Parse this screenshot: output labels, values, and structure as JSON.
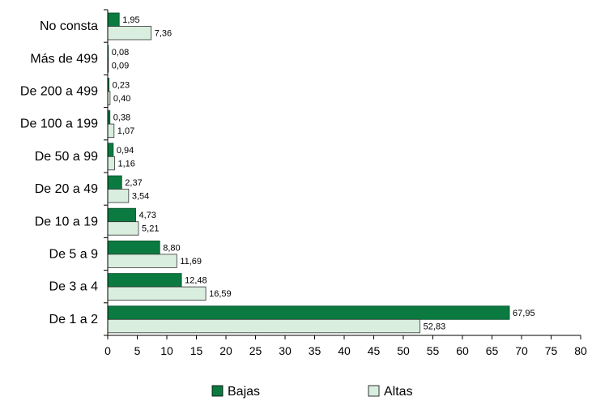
{
  "chart_data": {
    "type": "bar",
    "orientation": "horizontal",
    "categories": [
      "No consta",
      "Más de 499",
      "De 200 a 499",
      "De 100 a 199",
      "De 50 a 99",
      "De 20 a 49",
      "De 10 a 19",
      "De 5 a 9",
      "De 3 a 4",
      "De 1 a 2"
    ],
    "series": [
      {
        "name": "Bajas",
        "color": "#0b7a40",
        "values": [
          1.95,
          0.08,
          0.23,
          0.38,
          0.94,
          2.37,
          4.73,
          8.8,
          12.48,
          67.95
        ],
        "labels": [
          "1,95",
          "0,08",
          "0,23",
          "0,38",
          "0,94",
          "2,37",
          "4,73",
          "8,80",
          "12,48",
          "67,95"
        ]
      },
      {
        "name": "Altas",
        "color": "#d9eede",
        "values": [
          7.36,
          0.09,
          0.4,
          1.07,
          1.16,
          3.54,
          5.21,
          11.69,
          16.59,
          52.83
        ],
        "labels": [
          "7,36",
          "0,09",
          "0,40",
          "1,07",
          "1,16",
          "3,54",
          "5,21",
          "11,69",
          "16,59",
          "52,83"
        ]
      }
    ],
    "xlim": [
      0,
      80
    ],
    "xticks": [
      0,
      5,
      10,
      15,
      20,
      25,
      30,
      35,
      40,
      45,
      50,
      55,
      60,
      65,
      70,
      75,
      80
    ],
    "grid": false,
    "legend_position": "bottom"
  }
}
